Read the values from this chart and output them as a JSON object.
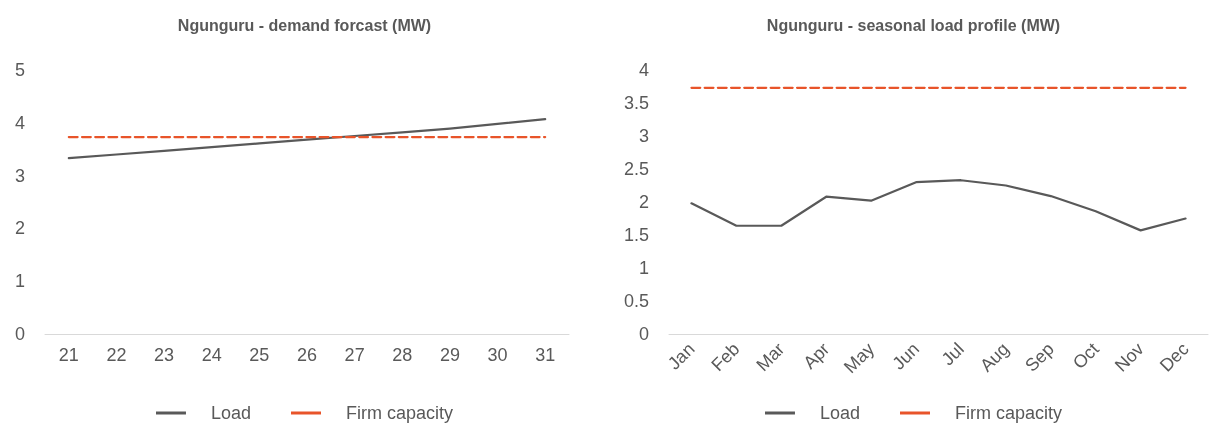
{
  "chart_data": [
    {
      "type": "line",
      "title": "Ngunguru - demand forcast (MW)",
      "categories": [
        "21",
        "22",
        "23",
        "24",
        "25",
        "26",
        "27",
        "28",
        "29",
        "30",
        "31"
      ],
      "series": [
        {
          "name": "Load",
          "color": "#595959",
          "line_style": "solid",
          "values": [
            3.33,
            3.4,
            3.47,
            3.54,
            3.61,
            3.68,
            3.75,
            3.82,
            3.89,
            3.98,
            4.07
          ]
        },
        {
          "name": "Firm capacity",
          "color": "#e8542a",
          "line_style": "dashed",
          "values": [
            3.73,
            3.73,
            3.73,
            3.73,
            3.73,
            3.73,
            3.73,
            3.73,
            3.73,
            3.73,
            3.73
          ]
        }
      ],
      "ylim": [
        0,
        5
      ],
      "yticks": [
        0,
        1,
        2,
        3,
        4,
        5
      ],
      "grid": false,
      "legend": "bottom",
      "marker": "none"
    },
    {
      "type": "line",
      "title": "Ngunguru - seasonal load profile (MW)",
      "categories": [
        "Jan",
        "Feb",
        "Mar",
        "Apr",
        "May",
        "Jun",
        "Jul",
        "Aug",
        "Sep",
        "Oct",
        "Nov",
        "Dec"
      ],
      "series": [
        {
          "name": "Load",
          "color": "#595959",
          "line_style": "solid",
          "values": [
            1.98,
            1.64,
            1.64,
            2.08,
            2.02,
            2.3,
            2.33,
            2.25,
            2.09,
            1.86,
            1.57,
            1.75
          ]
        },
        {
          "name": "Firm capacity",
          "color": "#e8542a",
          "line_style": "dashed",
          "values": [
            3.73,
            3.73,
            3.73,
            3.73,
            3.73,
            3.73,
            3.73,
            3.73,
            3.73,
            3.73,
            3.73,
            3.73
          ]
        }
      ],
      "ylim": [
        0,
        4
      ],
      "yticks": [
        0,
        0.5,
        1,
        1.5,
        2,
        2.5,
        3,
        3.5,
        4
      ],
      "grid": false,
      "legend": "bottom",
      "marker": "none"
    }
  ]
}
